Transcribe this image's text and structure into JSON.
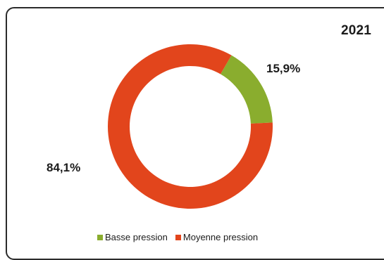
{
  "chart_data": {
    "type": "pie",
    "title": "2021",
    "categories": [
      "Basse pression",
      "Moyenne pression"
    ],
    "values": [
      15.9,
      84.1
    ],
    "labels": [
      "15,9%",
      "84,1%"
    ],
    "colors": [
      "#8aad2e",
      "#e2451c"
    ],
    "legend_position": "bottom"
  }
}
